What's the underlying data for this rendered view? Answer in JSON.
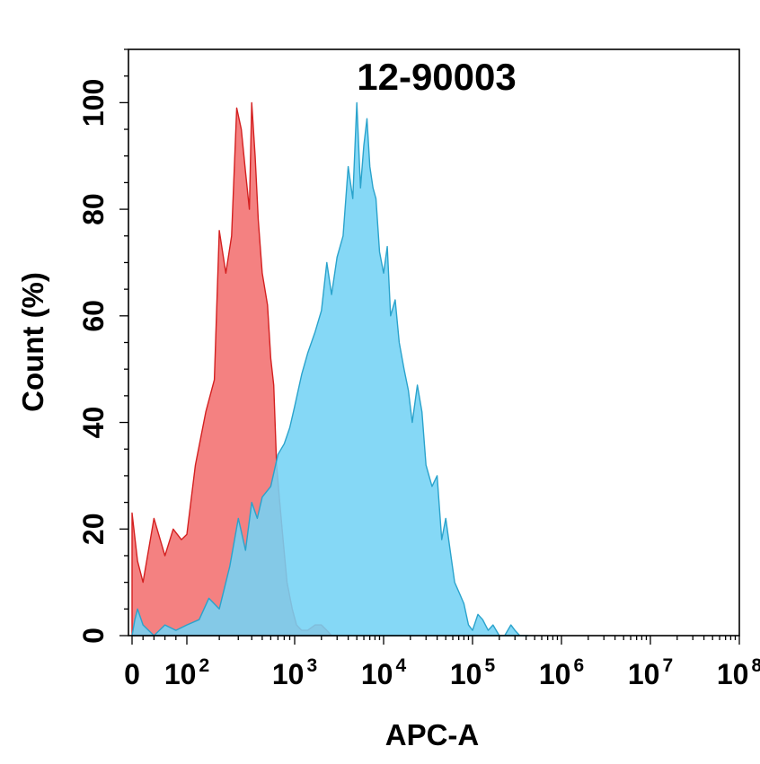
{
  "chart_data": {
    "type": "area",
    "title": "12-90003",
    "xlabel": "APC-A",
    "ylabel": "Count  (%)",
    "xscale": "biexponential-log",
    "x_ticks": [
      {
        "value": 0,
        "base": "0",
        "exp": ""
      },
      {
        "value": 100,
        "base": "10",
        "exp": "2"
      },
      {
        "value": 1000,
        "base": "10",
        "exp": "3"
      },
      {
        "value": 10000,
        "base": "10",
        "exp": "4"
      },
      {
        "value": 100000,
        "base": "10",
        "exp": "5"
      },
      {
        "value": 1000000,
        "base": "10",
        "exp": "6"
      },
      {
        "value": 10000000,
        "base": "10",
        "exp": "7"
      },
      {
        "value": 100000000,
        "base": "10",
        "exp": "8"
      }
    ],
    "y_ticks": [
      "0",
      "20",
      "40",
      "60",
      "80",
      "100"
    ],
    "ylim": [
      0,
      110
    ],
    "grid": false,
    "legend": "none",
    "series": [
      {
        "color": "#f26b6b",
        "stroke": "#d42020",
        "opacity": 0.85,
        "x": [
          0,
          10,
          20,
          40,
          60,
          75,
          90,
          100,
          120,
          150,
          180,
          200,
          230,
          260,
          290,
          320,
          350,
          380,
          400,
          430,
          460,
          500,
          520,
          560,
          600,
          640,
          680,
          720,
          780,
          850,
          950,
          1050,
          1200,
          1400,
          1700,
          2000,
          2300,
          2600,
          3000
        ],
        "y": [
          23,
          14,
          10,
          22,
          15,
          20,
          18,
          19,
          32,
          42,
          48,
          76,
          68,
          75,
          99,
          95,
          87,
          80,
          100,
          90,
          78,
          68,
          66,
          62,
          52,
          47,
          32,
          26,
          18,
          10,
          5,
          2,
          1,
          1,
          2,
          2,
          1,
          0,
          0
        ]
      },
      {
        "color": "#74d3f5",
        "stroke": "#2aa3cc",
        "opacity": 0.88,
        "x": [
          0,
          5,
          10,
          20,
          40,
          60,
          80,
          100,
          130,
          160,
          200,
          250,
          300,
          350,
          400,
          450,
          500,
          600,
          700,
          800,
          900,
          1000,
          1200,
          1400,
          1700,
          2000,
          2300,
          2600,
          3000,
          3500,
          4000,
          4500,
          5000,
          5500,
          6000,
          6500,
          7000,
          7600,
          8200,
          9000,
          10000,
          11000,
          12000,
          13500,
          15000,
          17000,
          19000,
          21000,
          24000,
          27000,
          30000,
          35000,
          40000,
          45000,
          50000,
          56000,
          63000,
          71000,
          80000,
          90000,
          100000,
          115000,
          130000,
          150000,
          170000,
          200000,
          230000,
          270000,
          300000,
          340000,
          380000,
          420000
        ],
        "y": [
          0,
          3,
          5,
          2,
          0,
          2,
          1,
          2,
          3,
          7,
          5,
          13,
          22,
          16,
          25,
          22,
          26,
          28,
          34,
          36,
          39,
          43,
          49,
          53,
          57,
          61,
          70,
          64,
          71,
          75,
          88,
          82,
          100,
          84,
          92,
          97,
          88,
          84,
          82,
          72,
          68,
          73,
          60,
          63,
          55,
          50,
          46,
          40,
          47,
          42,
          32,
          28,
          30,
          18,
          22,
          16,
          10,
          8,
          6,
          2,
          1,
          4,
          3,
          1,
          2,
          0,
          0,
          2,
          1,
          0,
          0,
          0
        ]
      }
    ]
  }
}
